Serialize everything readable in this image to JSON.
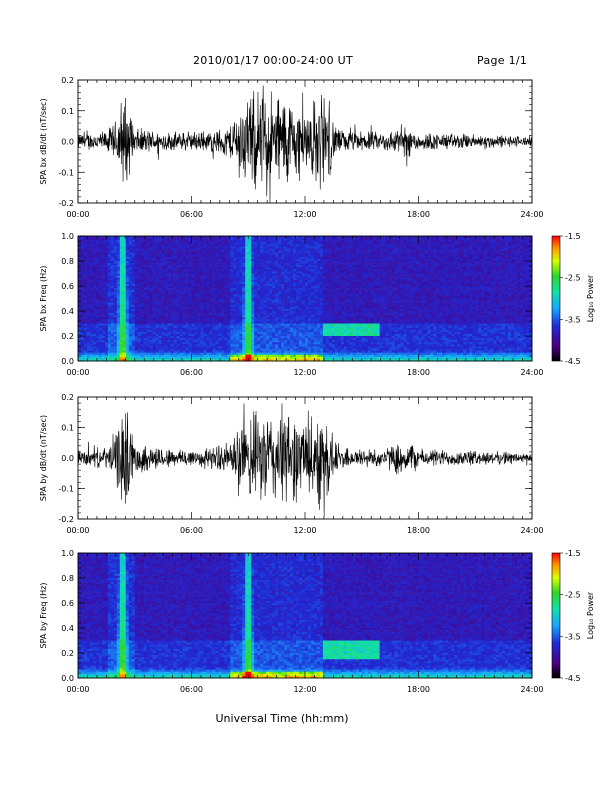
{
  "header": {
    "title": "2010/01/17  00:00-24:00 UT",
    "page": "Page 1/1"
  },
  "xaxis": {
    "ticks": [
      "00:00",
      "06:00",
      "12:00",
      "18:00",
      "24:00"
    ],
    "label": "Universal Time (hh:mm)"
  },
  "colorbar": {
    "ticks": [
      "-1.5",
      "-2.5",
      "-3.5",
      "-4.5"
    ],
    "label": "Log₁₀ Power"
  },
  "chart_data": [
    {
      "type": "line",
      "id": "bx_ts",
      "ylabel": "SPA bx dB/dt (nT/sec)",
      "x_range_hours": [
        0,
        24
      ],
      "ylim": [
        -0.2,
        0.2
      ],
      "yticks": [
        "0.2",
        "0.1",
        "0.0",
        "-0.1",
        "-0.2"
      ],
      "activity_envelope": {
        "hours": [
          0,
          1.5,
          2,
          2.4,
          2.6,
          3,
          5,
          7,
          8,
          8.5,
          9,
          10,
          11,
          12,
          13,
          13.5,
          14,
          16,
          17.5,
          18,
          20,
          24
        ],
        "amplitude": [
          0.03,
          0.04,
          0.08,
          0.2,
          0.15,
          0.05,
          0.035,
          0.04,
          0.06,
          0.14,
          0.18,
          0.2,
          0.18,
          0.12,
          0.2,
          0.08,
          0.04,
          0.035,
          0.06,
          0.035,
          0.03,
          0.02
        ]
      }
    },
    {
      "type": "heatmap",
      "id": "bx_spec",
      "ylabel": "SPA bx Freq (Hz)",
      "x_range_hours": [
        0,
        24
      ],
      "ylim": [
        0,
        1.0
      ],
      "yticks": [
        "1.0",
        "0.8",
        "0.6",
        "0.4",
        "0.2",
        "0.0"
      ],
      "zlim": [
        -4.5,
        -1.5
      ],
      "features": [
        {
          "hour": 2.4,
          "note": "strong vertical broadband burst"
        },
        {
          "hour": 9.0,
          "note": "vertical broadband burst"
        },
        {
          "hours": [
            13.0,
            16.0
          ],
          "freq_hz": [
            0.2,
            0.3
          ],
          "note": "banded emission"
        },
        {
          "hours": [
            8.0,
            13.0
          ],
          "freq_hz": [
            0.0,
            0.05
          ],
          "note": "elevated low-frequency power"
        }
      ]
    },
    {
      "type": "line",
      "id": "by_ts",
      "ylabel": "SPA by dB/dt (nT/sec)",
      "x_range_hours": [
        0,
        24
      ],
      "ylim": [
        -0.2,
        0.2
      ],
      "yticks": [
        "0.2",
        "0.1",
        "0.0",
        "-0.1",
        "-0.2"
      ],
      "activity_envelope": {
        "hours": [
          0,
          1.5,
          2,
          2.4,
          2.6,
          3,
          5,
          7,
          8,
          8.5,
          9,
          10,
          11,
          12,
          13,
          13.5,
          14,
          16,
          17.5,
          18,
          20,
          24
        ],
        "amplitude": [
          0.03,
          0.04,
          0.1,
          0.2,
          0.18,
          0.06,
          0.035,
          0.04,
          0.06,
          0.12,
          0.16,
          0.18,
          0.19,
          0.14,
          0.2,
          0.08,
          0.04,
          0.035,
          0.07,
          0.035,
          0.03,
          0.02
        ]
      }
    },
    {
      "type": "heatmap",
      "id": "by_spec",
      "ylabel": "SPA by Freq (Hz)",
      "x_range_hours": [
        0,
        24
      ],
      "ylim": [
        0,
        1.0
      ],
      "yticks": [
        "1.0",
        "0.8",
        "0.6",
        "0.4",
        "0.2",
        "0.0"
      ],
      "zlim": [
        -4.5,
        -1.5
      ],
      "features": [
        {
          "hour": 2.4,
          "note": "strong vertical broadband burst"
        },
        {
          "hour": 9.0,
          "note": "vertical broadband burst"
        },
        {
          "hours": [
            13.0,
            16.0
          ],
          "freq_hz": [
            0.15,
            0.3
          ],
          "note": "banded emission"
        },
        {
          "hours": [
            8.0,
            13.0
          ],
          "freq_hz": [
            0.0,
            0.05
          ],
          "note": "elevated low-frequency power"
        }
      ]
    }
  ]
}
